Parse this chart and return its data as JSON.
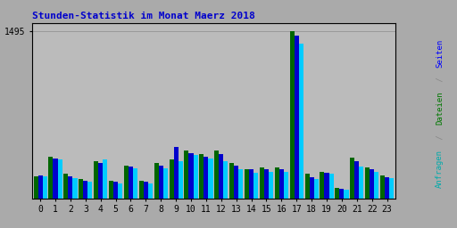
{
  "title": "Stunden-Statistik im Monat Maerz 2018",
  "hours": [
    0,
    1,
    2,
    3,
    4,
    5,
    6,
    7,
    8,
    9,
    10,
    11,
    12,
    13,
    14,
    15,
    16,
    17,
    18,
    19,
    20,
    21,
    22,
    23
  ],
  "seiten": [
    200,
    375,
    220,
    175,
    335,
    155,
    295,
    155,
    315,
    345,
    430,
    395,
    430,
    315,
    260,
    275,
    275,
    1495,
    220,
    235,
    92,
    365,
    275,
    205
  ],
  "dateien": [
    205,
    355,
    195,
    158,
    315,
    148,
    285,
    148,
    295,
    460,
    405,
    375,
    395,
    295,
    258,
    258,
    258,
    1455,
    188,
    228,
    82,
    335,
    258,
    192
  ],
  "anfragen": [
    195,
    345,
    178,
    152,
    348,
    132,
    272,
    132,
    268,
    335,
    385,
    358,
    335,
    262,
    232,
    238,
    238,
    1380,
    172,
    218,
    77,
    288,
    238,
    178
  ],
  "color_seiten": "#006600",
  "color_dateien": "#0000cc",
  "color_anfragen": "#00ccff",
  "title_color": "#0000cc",
  "fig_bg": "#aaaaaa",
  "plot_bg": "#bbbbbb",
  "grid_color": "#999999",
  "ytick_val": 1495,
  "ylabel_seiten_color": "#0000ff",
  "ylabel_dateien_color": "#007700",
  "ylabel_anfragen_color": "#00aaaa",
  "ylabel_slash_color": "#888888"
}
